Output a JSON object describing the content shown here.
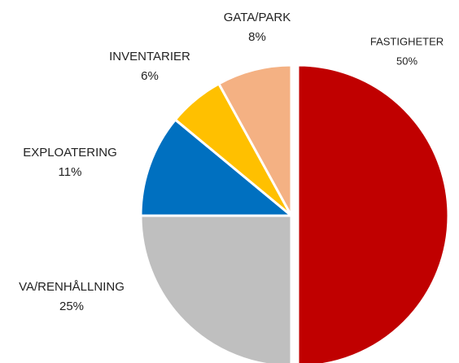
{
  "chart_data": {
    "type": "pie",
    "categories": [
      "FASTIGHETER",
      "VA/RENHÅLLNING",
      "EXPLOATERING",
      "INVENTARIER",
      "GATA/PARK"
    ],
    "values": [
      50,
      25,
      11,
      6,
      8
    ],
    "value_labels": [
      "50%",
      "25%",
      "11%",
      "6%",
      "8%"
    ],
    "colors": [
      "#c00000",
      "#bfbfbf",
      "#0070c0",
      "#ffc000",
      "#f4b183"
    ]
  }
}
